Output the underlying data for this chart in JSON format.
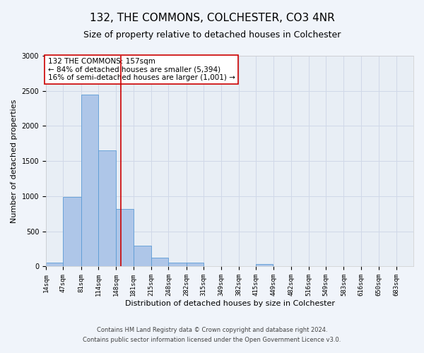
{
  "title": "132, THE COMMONS, COLCHESTER, CO3 4NR",
  "subtitle": "Size of property relative to detached houses in Colchester",
  "xlabel": "Distribution of detached houses by size in Colchester",
  "ylabel": "Number of detached properties",
  "footer_line1": "Contains HM Land Registry data © Crown copyright and database right 2024.",
  "footer_line2": "Contains public sector information licensed under the Open Government Licence v3.0.",
  "annotation_line1": "132 THE COMMONS: 157sqm",
  "annotation_line2": "← 84% of detached houses are smaller (5,394)",
  "annotation_line3": "16% of semi-detached houses are larger (1,001) →",
  "bar_left_edges": [
    14,
    47,
    81,
    114,
    148,
    181,
    215,
    248,
    282,
    315,
    349,
    382,
    415,
    449,
    482,
    516,
    549,
    583,
    616,
    650,
    683
  ],
  "bar_widths": [
    33,
    34,
    33,
    34,
    33,
    34,
    33,
    34,
    33,
    34,
    33,
    34,
    33,
    34,
    33,
    34,
    33,
    34,
    33,
    34,
    33
  ],
  "bar_heights": [
    60,
    990,
    2450,
    1650,
    820,
    300,
    130,
    50,
    50,
    0,
    0,
    0,
    30,
    0,
    0,
    0,
    0,
    0,
    0,
    0,
    0
  ],
  "bar_color": "#aec6e8",
  "bar_edge_color": "#5b9bd5",
  "red_line_x": 157,
  "ylim": [
    0,
    3000
  ],
  "xlim": [
    14,
    716
  ],
  "tick_labels": [
    "14sqm",
    "47sqm",
    "81sqm",
    "114sqm",
    "148sqm",
    "181sqm",
    "215sqm",
    "248sqm",
    "282sqm",
    "315sqm",
    "349sqm",
    "382sqm",
    "415sqm",
    "449sqm",
    "482sqm",
    "516sqm",
    "549sqm",
    "583sqm",
    "616sqm",
    "650sqm",
    "683sqm"
  ],
  "tick_positions": [
    14,
    47,
    81,
    114,
    148,
    181,
    215,
    248,
    282,
    315,
    349,
    382,
    415,
    449,
    482,
    516,
    549,
    583,
    616,
    650,
    683
  ],
  "grid_color": "#d0d8e8",
  "bg_color": "#e8eef5",
  "fig_bg_color": "#f0f4fa",
  "title_fontsize": 11,
  "subtitle_fontsize": 9,
  "annotation_box_color": "#ffffff",
  "annotation_box_edge": "#cc0000",
  "red_line_color": "#cc0000",
  "ylabel_fontsize": 8,
  "xlabel_fontsize": 8,
  "tick_fontsize": 6.5,
  "footer_fontsize": 6,
  "annotation_fontsize": 7.5
}
